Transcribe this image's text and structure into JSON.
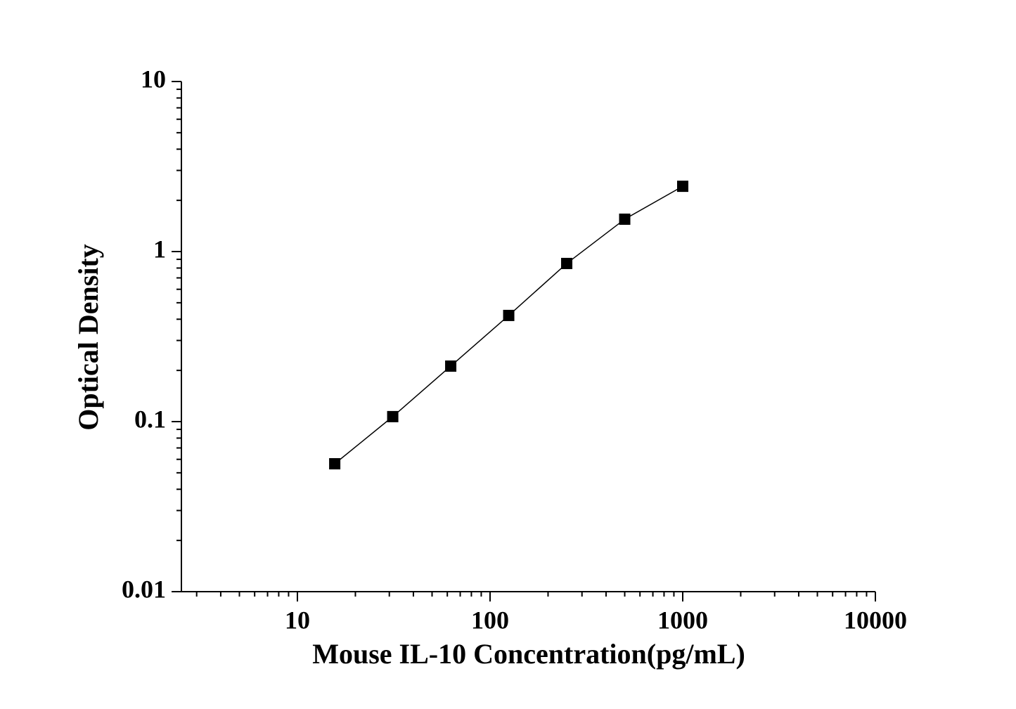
{
  "chart_data": {
    "type": "line",
    "xlabel": "Mouse IL-10 Concentration(pg/mL)",
    "ylabel": "Optical Density",
    "x": [
      15.625,
      31.25,
      62.5,
      125,
      250,
      500,
      1000
    ],
    "series": [
      {
        "color": "#000000",
        "marker": "square",
        "values": [
          0.0565,
          0.107,
          0.212,
          0.421,
          0.851,
          1.55,
          2.42
        ]
      }
    ],
    "xlim": [
      2.5,
      10000
    ],
    "ylim": [
      0.01,
      10
    ],
    "xticks": [
      10,
      100,
      1000,
      10000
    ],
    "yticks": [
      0.01,
      0.1,
      1,
      10
    ],
    "xscale": "log",
    "yscale": "log",
    "minor_ticks": true,
    "grid": false
  }
}
